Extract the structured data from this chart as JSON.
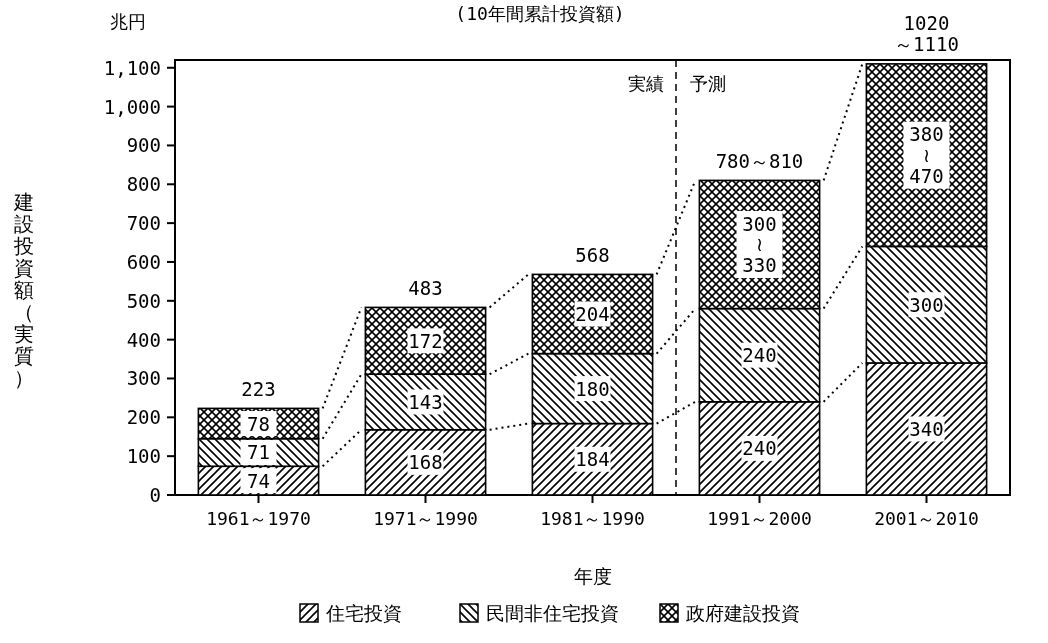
{
  "chart_data": {
    "type": "bar",
    "stacked": true,
    "subtitle": "(10年間累計投資額)",
    "xlabel": "年度",
    "ylabel": "建設投資額（実質）",
    "annotations": [
      "兆円",
      "実績",
      "予測"
    ],
    "categories": [
      "1961～1970",
      "1971～1990",
      "1981～1990",
      "1991～2000",
      "2001～2010"
    ],
    "series": [
      {
        "name": "住宅投資",
        "color": "#000000",
        "values": [
          74,
          168,
          184,
          240,
          340
        ]
      },
      {
        "name": "民間非住宅投資",
        "color": "#000000",
        "values": [
          71,
          143,
          180,
          240,
          300
        ]
      },
      {
        "name": "政府建設投資",
        "color": "#000000",
        "values": [
          78,
          172,
          204,
          330,
          470
        ],
        "value_labels": [
          "78",
          "172",
          "204",
          "300\n≀\n330",
          "380\n≀\n470"
        ]
      }
    ],
    "totals": [
      "223",
      "483",
      "568",
      "780～810",
      "1020\n～1110"
    ],
    "ylim": [
      0,
      1120
    ],
    "yticks": [
      0,
      100,
      200,
      300,
      400,
      500,
      600,
      700,
      800,
      900,
      {
        "value": 1000,
        "label": "1,000"
      },
      {
        "value": 1100,
        "label": "1,100"
      }
    ],
    "data_labels": true,
    "legend": "bottom",
    "grid": false
  }
}
